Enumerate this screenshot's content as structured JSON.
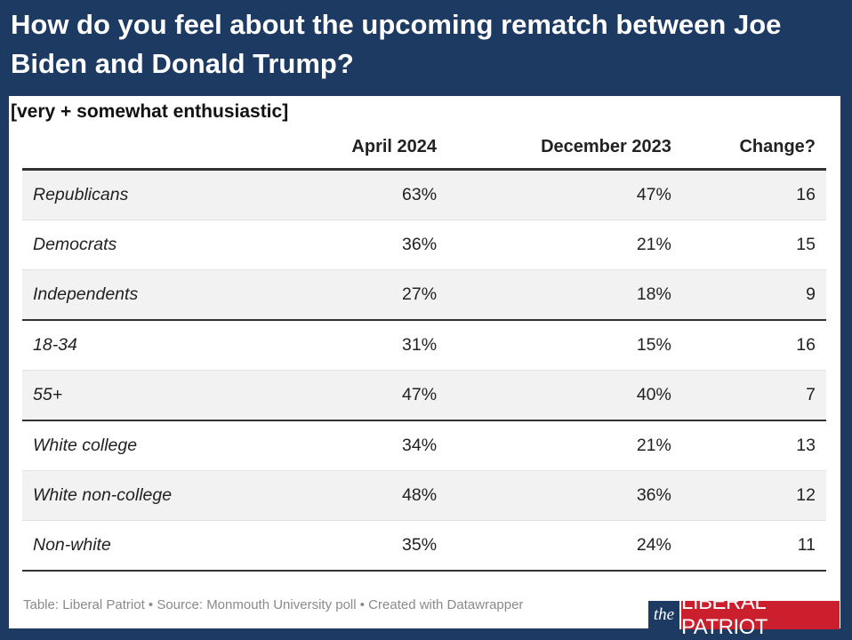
{
  "title": "How do you feel about the upcoming rematch between Joe Biden and Donald Trump?",
  "subtitle": "[very + somewhat enthusiastic]",
  "footer": "Table: Liberal Patriot • Source: Monmouth University poll • Created with Datawrapper",
  "logo": {
    "the": "the",
    "name": "LIBERAL PATRIOT"
  },
  "colors": {
    "background": "#1d3a63",
    "panel": "#ffffff",
    "row_shade": "#f2f2f2",
    "logo_red": "#cc1f2e"
  },
  "chart_data": {
    "type": "table",
    "columns": [
      "",
      "April 2024",
      "December 2023",
      "Change?"
    ],
    "rows": [
      {
        "label": "Republicans",
        "april_2024": "63%",
        "december_2023": "47%",
        "change": "16"
      },
      {
        "label": "Democrats",
        "april_2024": "36%",
        "december_2023": "21%",
        "change": "15"
      },
      {
        "label": "Independents",
        "april_2024": "27%",
        "december_2023": "18%",
        "change": "9"
      },
      {
        "label": "18-34",
        "april_2024": "31%",
        "december_2023": "15%",
        "change": "16"
      },
      {
        "label": "55+",
        "april_2024": "47%",
        "december_2023": "40%",
        "change": "7"
      },
      {
        "label": "White college",
        "april_2024": "34%",
        "december_2023": "21%",
        "change": "13"
      },
      {
        "label": "White non-college",
        "april_2024": "48%",
        "december_2023": "36%",
        "change": "12"
      },
      {
        "label": "Non-white",
        "april_2024": "35%",
        "december_2023": "24%",
        "change": "11"
      }
    ]
  }
}
